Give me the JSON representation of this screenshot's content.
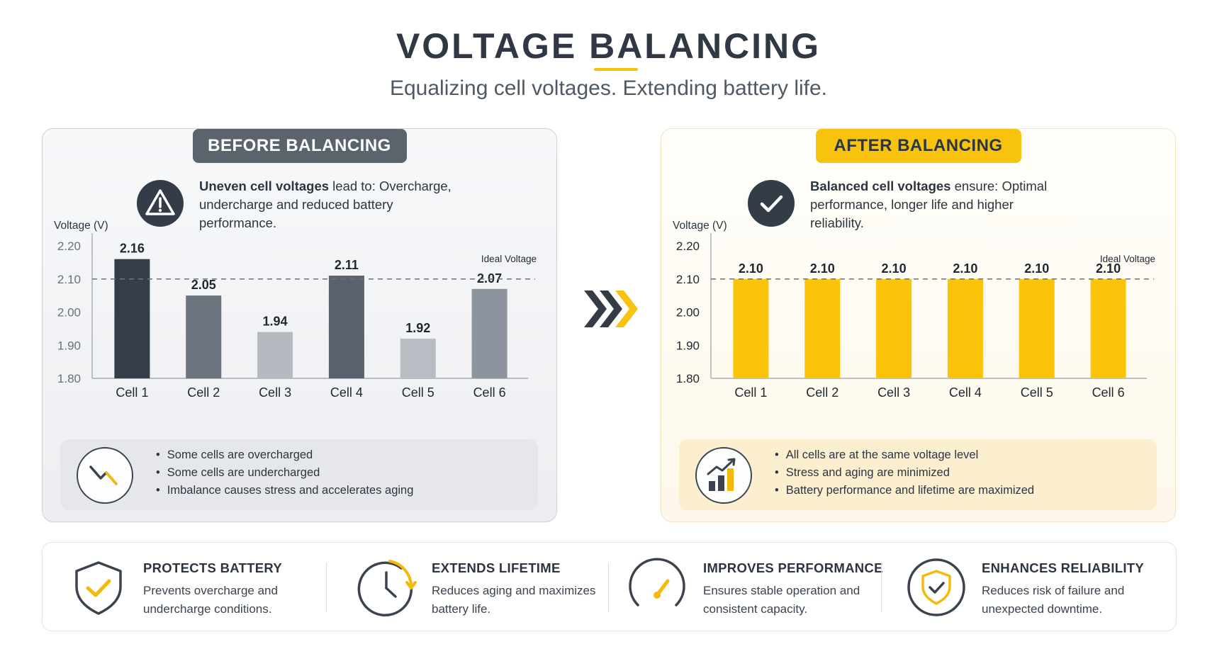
{
  "header": {
    "title": "VOLTAGE BALANCING",
    "subtitle": "Equalizing cell voltages. Extending battery life."
  },
  "before": {
    "badge": "BEFORE BALANCING",
    "status_icon": "warning-triangle-icon",
    "status_bold": "Uneven cell voltages",
    "status_rest": " lead to: Overcharge, undercharge and reduced battery performance.",
    "summary_icon": "declining-trend-icon",
    "summary_points": [
      "Some cells are overcharged",
      "Some cells are undercharged",
      "Imbalance causes stress and accelerates aging"
    ]
  },
  "after": {
    "badge": "AFTER BALANCING",
    "status_icon": "check-circle-icon",
    "status_bold": "Balanced cell voltages",
    "status_rest": " ensure: Optimal performance, longer life and higher reliability.",
    "summary_icon": "rising-bars-icon",
    "summary_points": [
      "All cells are at the same voltage level",
      "Stress and aging are minimized",
      "Battery performance and lifetime are maximized"
    ]
  },
  "transition_icon": "chevrons-right-icon",
  "features": [
    {
      "icon": "shield-check-icon",
      "title": "PROTECTS BATTERY",
      "desc": "Prevents overcharge and undercharge conditions."
    },
    {
      "icon": "clock-refresh-icon",
      "title": "EXTENDS LIFETIME",
      "desc": "Reduces aging and maximizes battery life."
    },
    {
      "icon": "gauge-icon",
      "title": "IMPROVES PERFORMANCE",
      "desc": "Ensures stable operation and consistent capacity."
    },
    {
      "icon": "shield-badge-icon",
      "title": "ENHANCES RELIABILITY",
      "desc": "Reduces risk of failure and unexpected downtime."
    }
  ],
  "colors": {
    "accent": "#f7c30f",
    "dark": "#2f3844",
    "before_bars": [
      "#343d48",
      "#6b737d",
      "#b5bac1",
      "#58616c",
      "#b8bdc4",
      "#8d949d"
    ],
    "after_bar": "#fbc408"
  },
  "chart_data": [
    {
      "type": "bar",
      "ylabel": "Voltage (V)",
      "categories": [
        "Cell 1",
        "Cell 2",
        "Cell 3",
        "Cell 4",
        "Cell 5",
        "Cell 6"
      ],
      "values": [
        2.16,
        2.05,
        1.94,
        2.11,
        1.92,
        2.07
      ],
      "value_labels": [
        "2.16",
        "2.05",
        "1.94",
        "2.11",
        "1.92",
        "2.07"
      ],
      "yticks": [
        "1.80",
        "1.90",
        "2.00",
        "2.10",
        "2.20"
      ],
      "ylim": [
        1.8,
        2.2
      ],
      "reference_line": {
        "value": 2.1,
        "label": "Ideal Voltage"
      },
      "grid": false
    },
    {
      "type": "bar",
      "ylabel": "Voltage (V)",
      "categories": [
        "Cell 1",
        "Cell 2",
        "Cell 3",
        "Cell 4",
        "Cell 5",
        "Cell 6"
      ],
      "values": [
        2.1,
        2.1,
        2.1,
        2.1,
        2.1,
        2.1
      ],
      "value_labels": [
        "2.10",
        "2.10",
        "2.10",
        "2.10",
        "2.10",
        "2.10"
      ],
      "yticks": [
        "1.80",
        "1.90",
        "2.00",
        "2.10",
        "2.20"
      ],
      "ylim": [
        1.8,
        2.2
      ],
      "reference_line": {
        "value": 2.1,
        "label": "Ideal Voltage"
      },
      "grid": false
    }
  ]
}
